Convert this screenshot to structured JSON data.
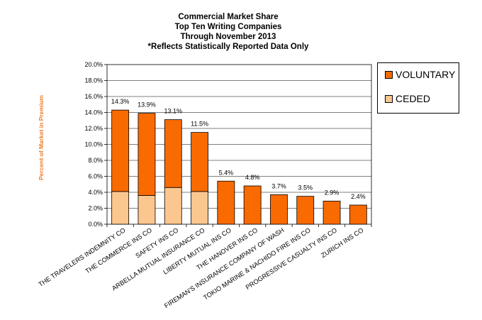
{
  "chart_data": {
    "type": "bar",
    "stacked": true,
    "title": [
      "Commercial Market Share",
      "Top Ten Writing Companies",
      "Through November 2013",
      "*Reflects Statistically Reported Data Only"
    ],
    "ylabel": "Percent of Market in Premium",
    "xlabel": "",
    "ylim": [
      0,
      20
    ],
    "yticks": [
      "0.0%",
      "2.0%",
      "4.0%",
      "6.0%",
      "8.0%",
      "10.0%",
      "12.0%",
      "14.0%",
      "16.0%",
      "18.0%",
      "20.0%"
    ],
    "grid": true,
    "legend_position": "right",
    "categories": [
      "THE TRAVELERS INDEMNITY CO",
      "THE COMMERCE INS CO",
      "SAFETY INS CO",
      "ARBELLA MUTUAL INSURANCE CO",
      "LIBERTY MUTUAL INS CO",
      "THE HANOVER INS CO",
      "FIREMAN'S INSURANCE COMPANY OF WASH",
      "TOKIO MARINE & NACHIDO FIRE INS CO",
      "PROGRESSIVE CASUALTY INS CO",
      "ZURICH INS CO"
    ],
    "series": [
      {
        "name": "CEDED",
        "color": "#fcc68f",
        "values": [
          4.1,
          3.6,
          4.6,
          4.1,
          0,
          0,
          0,
          0,
          0,
          0
        ]
      },
      {
        "name": "VOLUNTARY",
        "color": "#f96a00",
        "values": [
          10.2,
          10.3,
          8.5,
          7.4,
          5.4,
          4.8,
          3.7,
          3.5,
          2.9,
          2.4
        ]
      }
    ],
    "data_labels": [
      "14.3%",
      "13.9%",
      "13.1%",
      "11.5%",
      "5.4%",
      "4.8%",
      "3.7%",
      "3.5%",
      "2.9%",
      "2.4%"
    ],
    "legend": [
      "VOLUNTARY",
      "CEDED"
    ]
  }
}
